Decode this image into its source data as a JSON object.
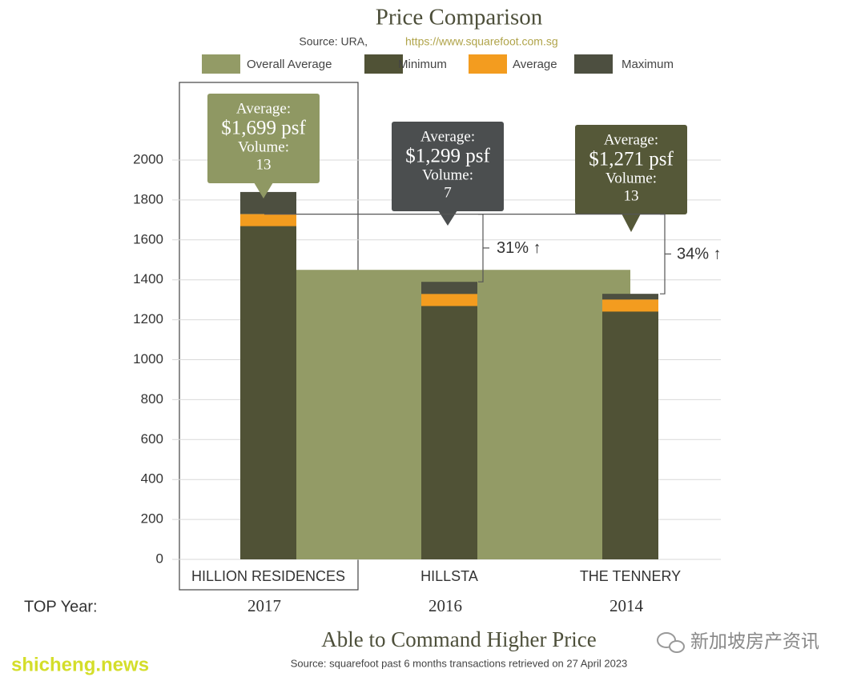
{
  "chart_data": {
    "type": "bar",
    "title": "Price Comparison",
    "source_prefix": "Source: URA,",
    "source_url": "https://www.squarefoot.com.sg",
    "categories": [
      "HILLION RESIDENCES",
      "HILLSTA",
      "THE TENNERY"
    ],
    "top_year_label": "TOP Year:",
    "top_years": [
      "2017",
      "2016",
      "2014"
    ],
    "overall_average": {
      "name": "Overall Average",
      "color": "#939b66",
      "value": 1450
    },
    "series": [
      {
        "name": "Minimum",
        "color": "#505236",
        "values": [
          1670,
          1270,
          1245
        ]
      },
      {
        "name": "Average",
        "color": "#f39c1f",
        "values": [
          1699,
          1299,
          1271
        ],
        "value_labels": [
          "$1,699 psf",
          "$1,299 psf",
          "$1,271 psf"
        ]
      },
      {
        "name": "Maximum",
        "color": "#4d4f40",
        "values": [
          1840,
          1390,
          1330
        ]
      }
    ],
    "callout_average_label": "Average:",
    "callout_volume_label": "Volume:",
    "volumes": [
      13,
      7,
      13
    ],
    "callout_colors": [
      "#8f9863",
      "#4b4e4f",
      "#555838"
    ],
    "comparisons": {
      "values": [
        31,
        34
      ],
      "value_labels": [
        "31% ↑",
        "34% ↑"
      ]
    },
    "ylim": [
      0,
      2000
    ],
    "yticks": [
      0,
      200,
      400,
      600,
      800,
      1000,
      1200,
      1400,
      1600,
      1800,
      2000
    ],
    "grid": true,
    "footer_title": "Able to Command Higher Price",
    "footer_source": "Source: squarefoot past 6 months transactions retrieved on 27 April 2023",
    "watermark_left": "shicheng.news",
    "watermark_right": "新加坡房产资讯"
  }
}
